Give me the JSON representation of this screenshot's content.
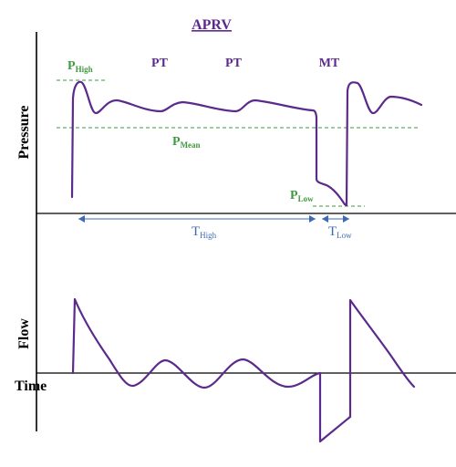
{
  "title": "APRV",
  "markers": {
    "pt1": "PT",
    "pt2": "PT",
    "mt": "MT"
  },
  "pressure_labels": {
    "p_high": {
      "main": "P",
      "sub": "High"
    },
    "p_mean": {
      "main": "P",
      "sub": "Mean"
    },
    "p_low": {
      "main": "P",
      "sub": "Low"
    }
  },
  "time_labels": {
    "t_high": {
      "main": "T",
      "sub": "High"
    },
    "t_low": {
      "main": "T",
      "sub": "Low"
    }
  },
  "axes": {
    "pressure": "Pressure",
    "flow": "Flow",
    "time": "Time"
  },
  "colors": {
    "waveform": "#5b2a8c",
    "pressure_reference": "#3f9a3f",
    "time_span": "#3d6bb3",
    "axes": "#000000"
  }
}
